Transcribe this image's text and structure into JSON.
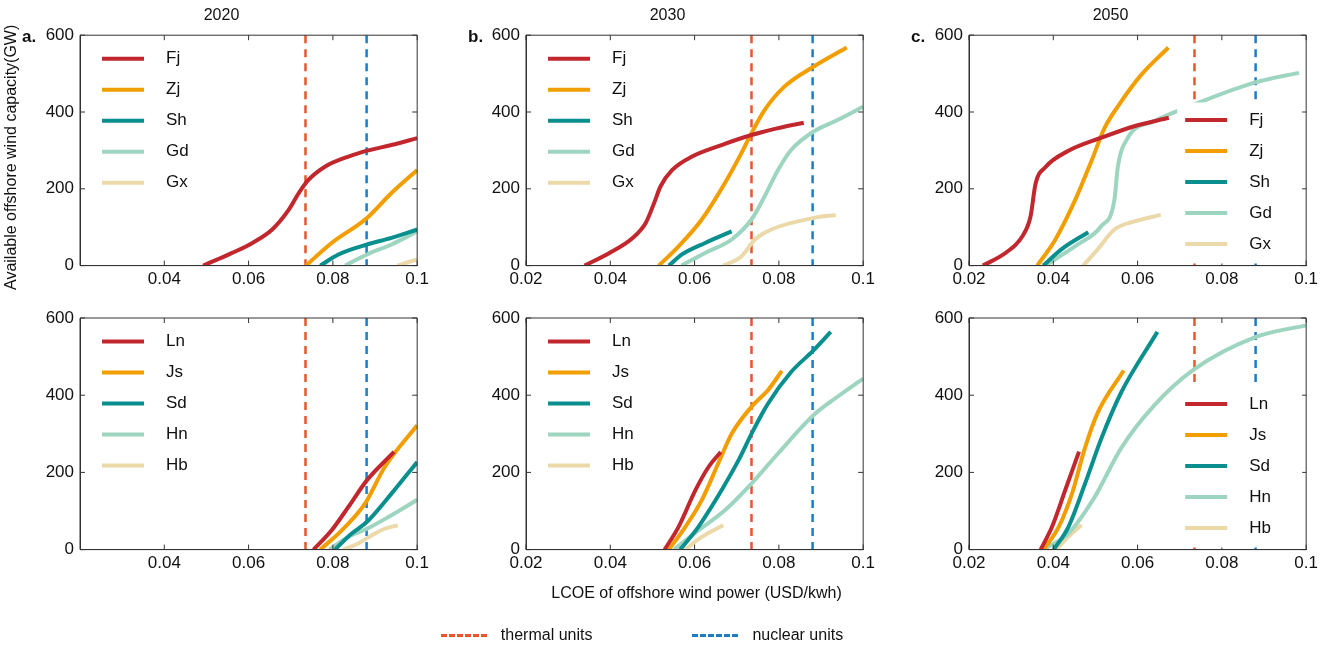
{
  "chart_data": [
    {
      "type": "line",
      "title": "2020",
      "ylabel": "Available offshore wind capacity(GW)",
      "annotations": [
        "a."
      ],
      "xlim": [
        0.02,
        0.1
      ],
      "xticks": [
        0.04,
        0.06,
        0.08,
        0.1
      ],
      "ylim": [
        0,
        600
      ],
      "yticks": [
        0,
        200,
        400,
        600
      ],
      "legend": "top left",
      "ref_lines": [
        {
          "axis": "x",
          "value": 0.0735,
          "color": "#e8562a",
          "line_style": "dashed"
        },
        {
          "axis": "x",
          "value": 0.088,
          "color": "#1a7dc9",
          "line_style": "dashed"
        }
      ],
      "series": [
        {
          "name": "Fj",
          "color": "#c1272d",
          "x": [
            0.0492,
            0.0561,
            0.0609,
            0.0656,
            0.0695,
            0.0719,
            0.0742,
            0.0782,
            0.0837,
            0.0884,
            0.0939,
            0.1
          ],
          "values": [
            0,
            33,
            59,
            94,
            145,
            189,
            223,
            258,
            284,
            300,
            314,
            332
          ]
        },
        {
          "name": "Zj",
          "color": "#f29e00",
          "x": [
            0.0736,
            0.0797,
            0.0881,
            0.0939,
            0.1
          ],
          "values": [
            0,
            59,
            124,
            189,
            249
          ]
        },
        {
          "name": "Sh",
          "color": "#0a8f8f",
          "x": [
            0.077,
            0.0813,
            0.0881,
            0.0939,
            0.1
          ],
          "values": [
            0,
            29,
            55,
            72,
            94
          ]
        },
        {
          "name": "Gd",
          "color": "#9dd5c0",
          "x": [
            0.0829,
            0.0881,
            0.0939,
            0.1
          ],
          "values": [
            0,
            29,
            55,
            89
          ]
        },
        {
          "name": "Gx",
          "color": "#ecd9a9",
          "x": [
            0.0953,
            0.1
          ],
          "values": [
            0,
            16
          ]
        }
      ]
    },
    {
      "type": "line",
      "title": "2030",
      "annotations": [
        "b."
      ],
      "xlim": [
        0.02,
        0.1
      ],
      "xticks": [
        0.02,
        0.04,
        0.06,
        0.08,
        0.1
      ],
      "ylim": [
        0,
        600
      ],
      "yticks": [
        0,
        200,
        400,
        600
      ],
      "legend": "top left",
      "ref_lines": [
        {
          "axis": "x",
          "value": 0.0735,
          "color": "#e8562a",
          "line_style": "dashed"
        },
        {
          "axis": "x",
          "value": 0.088,
          "color": "#1a7dc9",
          "line_style": "dashed"
        }
      ],
      "series": [
        {
          "name": "Fj",
          "color": "#c1272d",
          "x": [
            0.0339,
            0.0398,
            0.0453,
            0.0484,
            0.0504,
            0.0519,
            0.0547,
            0.0594,
            0.0664,
            0.0735,
            0.0798,
            0.0859
          ],
          "values": [
            0,
            33,
            72,
            111,
            163,
            206,
            249,
            284,
            314,
            340,
            358,
            372
          ]
        },
        {
          "name": "Zj",
          "color": "#f29e00",
          "x": [
            0.0515,
            0.0562,
            0.0617,
            0.0672,
            0.0711,
            0.0735,
            0.0766,
            0.0813,
            0.0882,
            0.0961
          ],
          "values": [
            0,
            50,
            120,
            215,
            293,
            345,
            405,
            466,
            518,
            568
          ]
        },
        {
          "name": "Sh",
          "color": "#0a8f8f",
          "x": [
            0.0539,
            0.057,
            0.0625,
            0.0688
          ],
          "values": [
            0,
            29,
            59,
            89
          ]
        },
        {
          "name": "Gd",
          "color": "#9dd5c0",
          "x": [
            0.0569,
            0.0625,
            0.0688,
            0.0735,
            0.0766,
            0.0798,
            0.0829,
            0.0882,
            0.0939,
            0.1
          ],
          "values": [
            0,
            33,
            68,
            120,
            180,
            249,
            301,
            349,
            379,
            414
          ]
        },
        {
          "name": "Gx",
          "color": "#ecd9a9",
          "x": [
            0.0668,
            0.0711,
            0.0743,
            0.0782,
            0.0882,
            0.0935
          ],
          "values": [
            0,
            24,
            68,
            94,
            124,
            132
          ]
        }
      ]
    },
    {
      "type": "line",
      "title": "2050",
      "annotations": [
        "c."
      ],
      "xlim": [
        0.02,
        0.1
      ],
      "xticks": [
        0.02,
        0.04,
        0.06,
        0.08,
        0.1
      ],
      "ylim": [
        0,
        600
      ],
      "yticks": [
        0,
        200,
        400,
        600
      ],
      "legend": "bottom right",
      "ref_lines": [
        {
          "axis": "x",
          "value": 0.0735,
          "color": "#e8562a",
          "line_style": "dashed"
        },
        {
          "axis": "x",
          "value": 0.088,
          "color": "#1a7dc9",
          "line_style": "dashed"
        }
      ],
      "series": [
        {
          "name": "Fj",
          "color": "#c1272d",
          "x": [
            0.0233,
            0.0288,
            0.0327,
            0.0346,
            0.0358,
            0.0381,
            0.0436,
            0.0514,
            0.0592,
            0.0674
          ],
          "values": [
            0,
            34,
            77,
            128,
            214,
            256,
            299,
            333,
            363,
            385
          ]
        },
        {
          "name": "Zj",
          "color": "#f29e00",
          "x": [
            0.0362,
            0.0405,
            0.0452,
            0.0491,
            0.0522,
            0.0561,
            0.0608,
            0.0673
          ],
          "values": [
            0,
            68,
            171,
            274,
            359,
            427,
            496,
            568
          ]
        },
        {
          "name": "Sh",
          "color": "#0a8f8f",
          "x": [
            0.0376,
            0.042,
            0.0483
          ],
          "values": [
            0,
            43,
            87
          ]
        },
        {
          "name": "Gd",
          "color": "#9dd5c0",
          "x": [
            0.0381,
            0.0452,
            0.0514,
            0.0545,
            0.0553,
            0.0577,
            0.0639,
            0.0733,
            0.0879,
            0.0983
          ],
          "values": [
            0,
            51,
            103,
            171,
            256,
            333,
            376,
            419,
            477,
            502
          ]
        },
        {
          "name": "Gx",
          "color": "#ecd9a9",
          "x": [
            0.0471,
            0.0506,
            0.0545,
            0.0592,
            0.0655
          ],
          "values": [
            0,
            43,
            94,
            115,
            132
          ]
        }
      ]
    },
    {
      "type": "line",
      "xlim": [
        0.02,
        0.1
      ],
      "xticks": [
        0.04,
        0.06,
        0.08,
        0.1
      ],
      "ylim": [
        0,
        600
      ],
      "yticks": [
        0,
        200,
        400,
        600
      ],
      "legend": "top left",
      "ref_lines": [
        {
          "axis": "x",
          "value": 0.0735,
          "color": "#e8562a",
          "line_style": "dashed"
        },
        {
          "axis": "x",
          "value": 0.088,
          "color": "#1a7dc9",
          "line_style": "dashed"
        }
      ],
      "series": [
        {
          "name": "Ln",
          "color": "#c1272d",
          "x": [
            0.0754,
            0.0797,
            0.0837,
            0.0881,
            0.0945
          ],
          "values": [
            0,
            50,
            111,
            180,
            253
          ]
        },
        {
          "name": "Js",
          "color": "#f29e00",
          "x": [
            0.077,
            0.0821,
            0.0876,
            0.0923,
            0.1
          ],
          "values": [
            0,
            50,
            119,
            214,
            322
          ]
        },
        {
          "name": "Sd",
          "color": "#0a8f8f",
          "x": [
            0.0805,
            0.0844,
            0.0881,
            0.0939,
            0.1
          ],
          "values": [
            0,
            41,
            72,
            145,
            227
          ]
        },
        {
          "name": "Hn",
          "color": "#9dd5c0",
          "x": [
            0.0792,
            0.0837,
            0.0881,
            0.0939,
            0.1
          ],
          "values": [
            0,
            33,
            54,
            89,
            129
          ]
        },
        {
          "name": "Hb",
          "color": "#ecd9a9",
          "x": [
            0.0825,
            0.086,
            0.0899,
            0.0923,
            0.0954
          ],
          "values": [
            0,
            16,
            41,
            54,
            63
          ]
        }
      ]
    },
    {
      "type": "line",
      "xlabel": "LCOE of offshore wind power (USD/kwh)",
      "annotations": [
        "thermal units",
        "nuclear units"
      ],
      "xlim": [
        0.02,
        0.1
      ],
      "xticks": [
        0.02,
        0.04,
        0.06,
        0.08,
        0.1
      ],
      "ylim": [
        0,
        600
      ],
      "yticks": [
        0,
        200,
        400,
        600
      ],
      "legend": "top left",
      "ref_lines": [
        {
          "axis": "x",
          "value": 0.0735,
          "color": "#e8562a",
          "line_style": "dashed"
        },
        {
          "axis": "x",
          "value": 0.088,
          "color": "#1a7dc9",
          "line_style": "dashed"
        }
      ],
      "series": [
        {
          "name": "Ln",
          "color": "#c1272d",
          "x": [
            0.0529,
            0.0562,
            0.0602,
            0.0633,
            0.0662
          ],
          "values": [
            0,
            59,
            154,
            214,
            253
          ]
        },
        {
          "name": "Js",
          "color": "#f29e00",
          "x": [
            0.0539,
            0.0578,
            0.0617,
            0.0656,
            0.0688,
            0.0735,
            0.0774,
            0.0807
          ],
          "values": [
            0,
            59,
            128,
            223,
            300,
            370,
            413,
            463
          ]
        },
        {
          "name": "Sd",
          "color": "#0a8f8f",
          "x": [
            0.0566,
            0.0609,
            0.0664,
            0.0704,
            0.0735,
            0.0774,
            0.0829,
            0.0882,
            0.0923
          ],
          "values": [
            0,
            59,
            154,
            231,
            300,
            378,
            460,
            516,
            564
          ]
        },
        {
          "name": "Hn",
          "color": "#9dd5c0",
          "x": [
            0.0551,
            0.0609,
            0.0672,
            0.0735,
            0.0798,
            0.0882,
            0.0939,
            0.1
          ],
          "values": [
            0,
            50,
            102,
            171,
            249,
            348,
            396,
            443
          ]
        },
        {
          "name": "Hb",
          "color": "#ecd9a9",
          "x": [
            0.0578,
            0.0617,
            0.0668
          ],
          "values": [
            0,
            33,
            63
          ]
        }
      ]
    },
    {
      "type": "line",
      "xlim": [
        0.02,
        0.1
      ],
      "xticks": [
        0.02,
        0.04,
        0.06,
        0.08,
        0.1
      ],
      "ylim": [
        0,
        600
      ],
      "yticks": [
        0,
        200,
        400,
        600
      ],
      "legend": "bottom right",
      "ref_lines": [
        {
          "axis": "x",
          "value": 0.0735,
          "color": "#e8562a",
          "line_style": "dashed"
        },
        {
          "axis": "x",
          "value": 0.088,
          "color": "#1a7dc9",
          "line_style": "dashed"
        }
      ],
      "series": [
        {
          "name": "Ln",
          "color": "#c1272d",
          "x": [
            0.037,
            0.0397,
            0.0428,
            0.0461
          ],
          "values": [
            0,
            59,
            153,
            254
          ]
        },
        {
          "name": "Js",
          "color": "#f29e00",
          "x": [
            0.0377,
            0.0413,
            0.0444,
            0.0475,
            0.0506,
            0.0567
          ],
          "values": [
            0,
            59,
            144,
            263,
            356,
            464
          ]
        },
        {
          "name": "Sd",
          "color": "#0a8f8f",
          "x": [
            0.0401,
            0.0436,
            0.0475,
            0.0514,
            0.0561,
            0.0647
          ],
          "values": [
            0,
            59,
            170,
            288,
            407,
            564
          ]
        },
        {
          "name": "Hn",
          "color": "#9dd5c0",
          "x": [
            0.0376,
            0.0436,
            0.0498,
            0.0561,
            0.0639,
            0.0733,
            0.0881,
            0.1
          ],
          "values": [
            0,
            42,
            136,
            263,
            373,
            466,
            551,
            581
          ]
        },
        {
          "name": "Hb",
          "color": "#ecd9a9",
          "x": [
            0.0407,
            0.0436,
            0.0467
          ],
          "values": [
            0,
            34,
            64
          ]
        }
      ]
    }
  ]
}
